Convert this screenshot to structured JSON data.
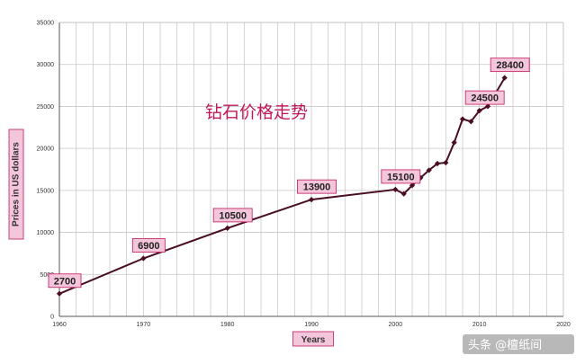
{
  "chart_data": {
    "type": "line",
    "title": "",
    "xlabel": "Years",
    "ylabel": "Prices in US dollars",
    "xlim": [
      1960,
      2020
    ],
    "ylim": [
      0,
      35000
    ],
    "x_ticks": [
      "1960",
      "1970",
      "1980",
      "1990",
      "2000",
      "2010",
      "2020"
    ],
    "y_ticks": [
      "0",
      "5000",
      "10000",
      "15000",
      "20000",
      "25000",
      "30000",
      "35000"
    ],
    "grid": true,
    "legend": "none",
    "series": [
      {
        "points": [
          [
            1960,
            2700
          ],
          [
            1970,
            6900
          ],
          [
            1980,
            10500
          ],
          [
            1990,
            13900
          ],
          [
            2000,
            15100
          ],
          [
            2001,
            14600
          ],
          [
            2002,
            15600
          ],
          [
            2003,
            16500
          ],
          [
            2004,
            17400
          ],
          [
            2005,
            18200
          ],
          [
            2006,
            18300
          ],
          [
            2007,
            20700
          ],
          [
            2008,
            23500
          ],
          [
            2009,
            23200
          ],
          [
            2010,
            24500
          ],
          [
            2011,
            25000
          ],
          [
            2013,
            28400
          ]
        ]
      }
    ],
    "data_labels": [
      {
        "x": 1960,
        "y": 2700,
        "text": "2700"
      },
      {
        "x": 1970,
        "y": 6900,
        "text": "6900"
      },
      {
        "x": 1980,
        "y": 10500,
        "text": "10500"
      },
      {
        "x": 1990,
        "y": 13900,
        "text": "13900"
      },
      {
        "x": 2000,
        "y": 15100,
        "text": "15100"
      },
      {
        "x": 2010,
        "y": 24500,
        "text": "24500"
      },
      {
        "x": 2013,
        "y": 28400,
        "text": "28400"
      }
    ],
    "annotation": "钻石价格走势",
    "colors": {
      "line": "#4a0e22",
      "marker": "#4a0e22",
      "label_fill": "#f4c6dc",
      "label_border": "#c2185b",
      "grid": "#c8c8c8",
      "annotation": "#c2185b"
    }
  },
  "watermark": "头条 @檀纸间"
}
